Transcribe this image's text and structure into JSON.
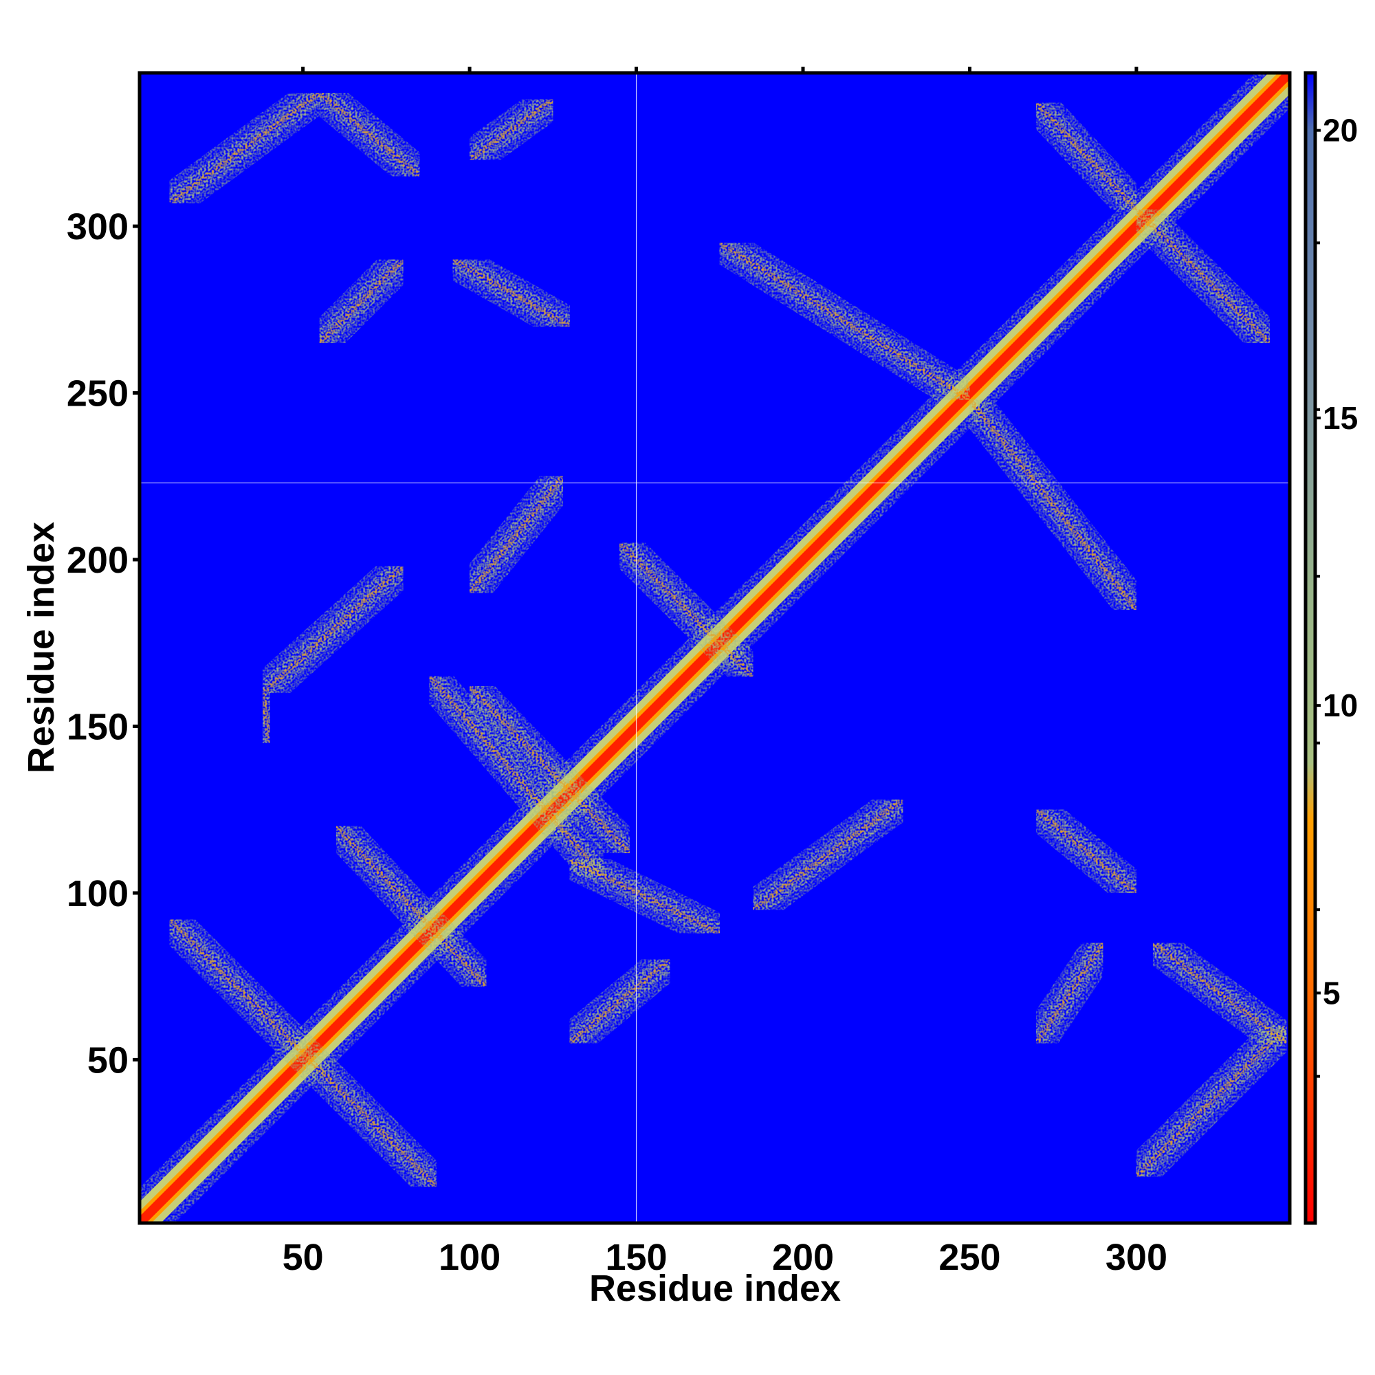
{
  "chart_data": {
    "type": "heatmap",
    "title": "",
    "xlabel": "Residue index",
    "ylabel": "Residue index",
    "x_range": [
      1,
      346
    ],
    "y_range": [
      1,
      346
    ],
    "x_ticks": [
      50,
      100,
      150,
      200,
      250,
      300
    ],
    "y_ticks": [
      50,
      100,
      150,
      200,
      250,
      300
    ],
    "colorbar": {
      "range": [
        1,
        21
      ],
      "ticks": [
        5,
        10,
        15,
        20
      ],
      "stops": [
        {
          "value": 1,
          "color": "#ff0000"
        },
        {
          "value": 5,
          "color": "#ff6a00"
        },
        {
          "value": 8,
          "color": "#ff9f00"
        },
        {
          "value": 9,
          "color": "#a8c080"
        },
        {
          "value": 12,
          "color": "#98b488"
        },
        {
          "value": 16,
          "color": "#7890a8"
        },
        {
          "value": 20,
          "color": "#5070b0"
        },
        {
          "value": 21,
          "color": "#0000ff"
        }
      ]
    },
    "background_color": "#0000ff",
    "crosshair": {
      "x": 150,
      "y": 223
    },
    "bands": [
      {
        "kind": "diagonal",
        "from": [
          1,
          1
        ],
        "to": [
          346,
          346
        ]
      },
      {
        "kind": "strip",
        "from": [
          10,
          92
        ],
        "to": [
          90,
          12
        ]
      },
      {
        "kind": "strip",
        "from": [
          40,
          145
        ],
        "to": [
          38,
          160
        ]
      },
      {
        "kind": "strip",
        "from": [
          60,
          120
        ],
        "to": [
          105,
          72
        ]
      },
      {
        "kind": "strip",
        "from": [
          88,
          165
        ],
        "to": [
          140,
          105
        ]
      },
      {
        "kind": "strip",
        "from": [
          38,
          160
        ],
        "to": [
          80,
          198
        ]
      },
      {
        "kind": "strip",
        "from": [
          100,
          162
        ],
        "to": [
          148,
          112
        ]
      },
      {
        "kind": "strip",
        "from": [
          100,
          190
        ],
        "to": [
          128,
          225
        ]
      },
      {
        "kind": "strip",
        "from": [
          130,
          110
        ],
        "to": [
          175,
          88
        ]
      },
      {
        "kind": "strip",
        "from": [
          145,
          205
        ],
        "to": [
          185,
          165
        ]
      },
      {
        "kind": "strip",
        "from": [
          185,
          95
        ],
        "to": [
          230,
          128
        ]
      },
      {
        "kind": "strip",
        "from": [
          175,
          295
        ],
        "to": [
          250,
          248
        ]
      },
      {
        "kind": "strip",
        "from": [
          250,
          248
        ],
        "to": [
          300,
          185
        ]
      },
      {
        "kind": "strip",
        "from": [
          270,
          337
        ],
        "to": [
          300,
          305
        ]
      },
      {
        "kind": "strip",
        "from": [
          300,
          305
        ],
        "to": [
          340,
          265
        ]
      },
      {
        "kind": "strip",
        "from": [
          10,
          307
        ],
        "to": [
          55,
          340
        ]
      },
      {
        "kind": "strip",
        "from": [
          55,
          340
        ],
        "to": [
          85,
          315
        ]
      },
      {
        "kind": "strip",
        "from": [
          95,
          290
        ],
        "to": [
          130,
          270
        ]
      },
      {
        "kind": "strip",
        "from": [
          55,
          265
        ],
        "to": [
          80,
          290
        ]
      },
      {
        "kind": "strip",
        "from": [
          100,
          320
        ],
        "to": [
          125,
          338
        ]
      },
      {
        "kind": "strip",
        "from": [
          270,
          125
        ],
        "to": [
          300,
          100
        ]
      },
      {
        "kind": "strip",
        "from": [
          300,
          15
        ],
        "to": [
          345,
          60
        ]
      },
      {
        "kind": "strip",
        "from": [
          305,
          85
        ],
        "to": [
          345,
          55
        ]
      },
      {
        "kind": "strip",
        "from": [
          270,
          55
        ],
        "to": [
          290,
          85
        ]
      },
      {
        "kind": "strip",
        "from": [
          130,
          55
        ],
        "to": [
          160,
          80
        ]
      }
    ]
  }
}
